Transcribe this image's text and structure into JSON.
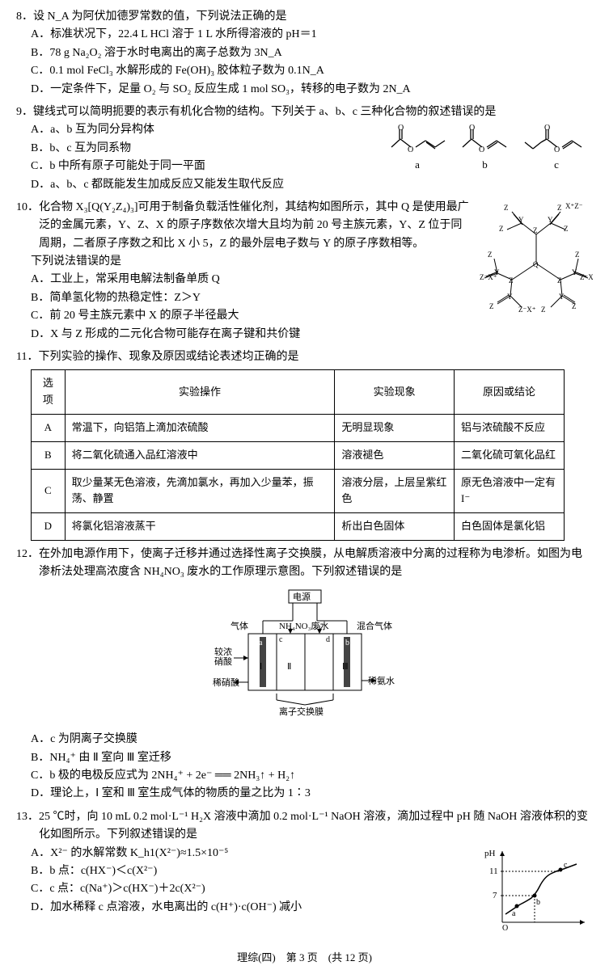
{
  "q8": {
    "num": "8．",
    "stem": "设 N_A 为阿伏加德罗常数的值，下列说法正确的是",
    "opts": {
      "A": "标准状况下，22.4 L HCl 溶于 1 L 水所得溶液的 pH＝1",
      "B": "78 g Na₂O₂ 溶于水时电离出的离子总数为 3N_A",
      "C": "0.1 mol FeCl₃ 水解形成的 Fe(OH)₃ 胶体粒子数为 0.1N_A",
      "D": "一定条件下，足量 O₂ 与 SO₂ 反应生成 1 mol SO₃，转移的电子数为 2N_A"
    }
  },
  "q9": {
    "num": "9．",
    "stem": "键线式可以简明扼要的表示有机化合物的结构。下列关于 a、b、c 三种化合物的叙述错误的是",
    "opts": {
      "A": "a、b 互为同分异构体",
      "B": "b、c 互为同系物",
      "C": "b 中所有原子可能处于同一平面",
      "D": "a、b、c 都既能发生加成反应又能发生取代反应"
    },
    "labels": {
      "a": "a",
      "b": "b",
      "c": "c"
    }
  },
  "q10": {
    "num": "10．",
    "stem": "化合物 X₃[Q(Y₂Z₄)₃]可用于制备负载活性催化剂，其结构如图所示，其中 Q 是使用最广泛的金属元素，Y、Z、X 的原子序数依次增大且均为前 20 号主族元素，Y、Z 位于同周期，二者原子序数之和比 X 小 5，Z 的最外层电子数与 Y 的原子序数相等。",
    "prompt": "下列说法错误的是",
    "opts": {
      "A": "工业上，常采用电解法制备单质 Q",
      "B": "简单氢化物的热稳定性：Z＞Y",
      "C": "前 20 号主族元素中 X 的原子半径最大",
      "D": "X 与 Z 形成的二元化合物可能存在离子键和共价键"
    }
  },
  "q11": {
    "num": "11．",
    "stem": "下列实验的操作、现象及原因或结论表述均正确的是",
    "table": {
      "headers": [
        "选项",
        "实验操作",
        "实验现象",
        "原因或结论"
      ],
      "rows": [
        [
          "A",
          "常温下，向铝箔上滴加浓硫酸",
          "无明显现象",
          "铝与浓硫酸不反应"
        ],
        [
          "B",
          "将二氧化硫通入品红溶液中",
          "溶液褪色",
          "二氧化硫可氧化品红"
        ],
        [
          "C",
          "取少量某无色溶液，先滴加氯水，再加入少量苯，振荡、静置",
          "溶液分层，上层呈紫红色",
          "原无色溶液中一定有 I⁻"
        ],
        [
          "D",
          "将氯化铝溶液蒸干",
          "析出白色固体",
          "白色固体是氯化铝"
        ]
      ]
    }
  },
  "q12": {
    "num": "12．",
    "stem": "在外加电源作用下，使离子迁移并通过选择性离子交换膜，从电解质溶液中分离的过程称为电渗析。如图为电渗析法处理高浓度含 NH₄NO₃ 废水的工作原理示意图。下列叙述错误的是",
    "opts": {
      "A": "c 为阴离子交换膜",
      "B": "NH₄⁺ 由 Ⅱ 室向 Ⅲ 室迁移",
      "C": "b 极的电极反应式为 2NH₄⁺ + 2e⁻ ══ 2NH₃↑ + H₂↑",
      "D": "理论上，Ⅰ 室和 Ⅲ 室生成气体的物质的量之比为 1∶3"
    },
    "diagram": {
      "power_label": "电源",
      "top_labels": [
        "气体",
        "NH₄NO₃废水",
        "混合气体"
      ],
      "electrodes": [
        "a",
        "b"
      ],
      "membranes": [
        "c",
        "d"
      ],
      "chambers": [
        "Ⅰ",
        "Ⅱ",
        "Ⅲ"
      ],
      "left_labels": [
        "较浓硝酸",
        "稀硝酸"
      ],
      "right_label": "稀氨水",
      "bottom_label": "离子交换膜"
    }
  },
  "q13": {
    "num": "13．",
    "stem": "25 ℃时，向 10 mL 0.2 mol·L⁻¹ H₂X 溶液中滴加 0.2 mol·L⁻¹ NaOH 溶液，滴加过程中 pH 随 NaOH 溶液体积的变化如图所示。下列叙述错误的是",
    "opts": {
      "A": "X²⁻ 的水解常数 K_h1(X²⁻)≈1.5×10⁻⁵",
      "B": "b 点：c(HX⁻)＜c(X²⁻)",
      "C": "c 点：c(Na⁺)＞c(HX⁻)＋2c(X²⁻)",
      "D": "加水稀释 c 点溶液，水电离出的 c(H⁺)·c(OH⁻) 减小"
    },
    "chart": {
      "xlabel": "",
      "ylabel": "pH",
      "ytick_values": [
        7,
        11
      ],
      "points": [
        "a",
        "b",
        "c"
      ],
      "line_color": "#000000",
      "dashed_color": "#000000",
      "xlim": [
        0,
        30
      ],
      "ylim": [
        0,
        14
      ]
    }
  },
  "footer": "理综(四)　第 3 页　(共 12 页)"
}
